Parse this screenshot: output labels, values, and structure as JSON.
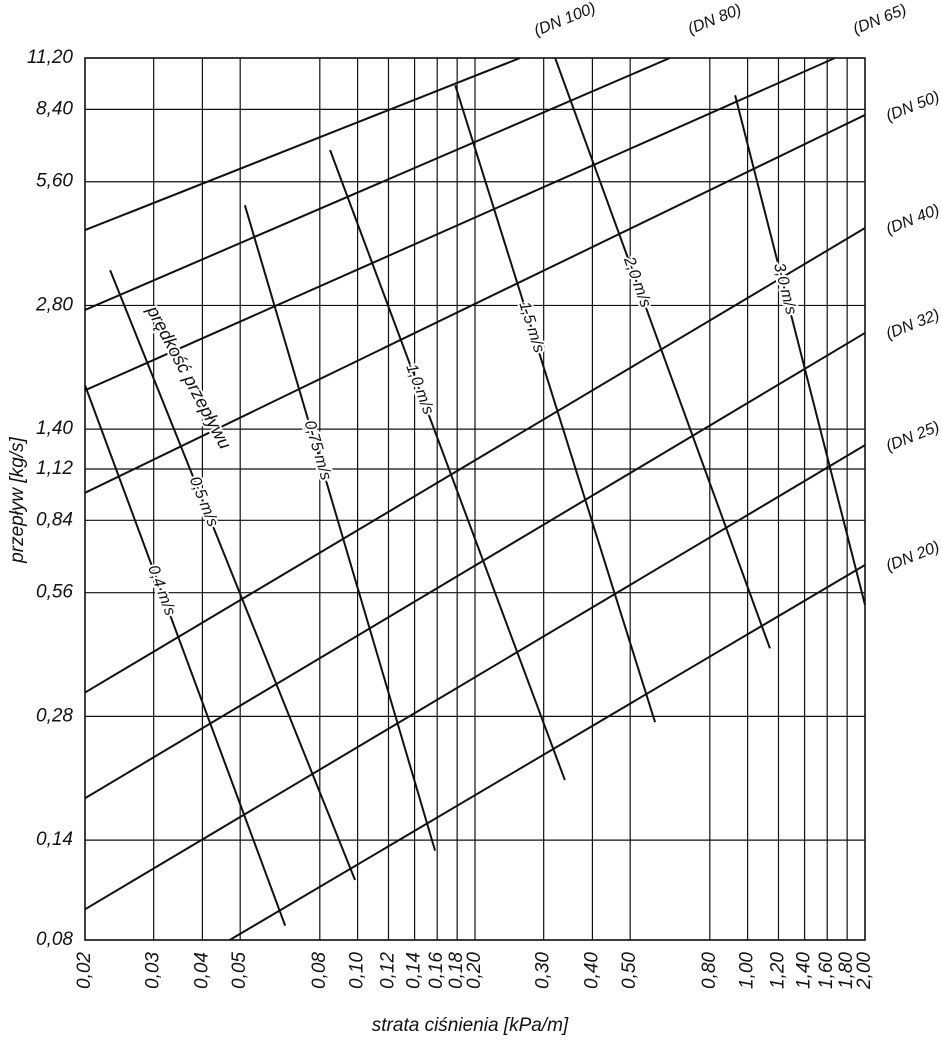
{
  "chart_data": {
    "type": "line",
    "xlabel": "strata ciśnienia [kPa/m]",
    "ylabel": "przepływ [kg/s]",
    "annotation": "prędkość przepływu",
    "xscale": "log",
    "yscale": "log",
    "grid": true,
    "color": "#111111",
    "xlim": [
      0.02,
      2.0
    ],
    "ylim": [
      0.08,
      11.2
    ],
    "xticks": [
      {
        "value": 0.02,
        "label": "0,02"
      },
      {
        "value": 0.03,
        "label": "0,03"
      },
      {
        "value": 0.04,
        "label": "0,04"
      },
      {
        "value": 0.05,
        "label": "0,05"
      },
      {
        "value": 0.08,
        "label": "0,08"
      },
      {
        "value": 0.1,
        "label": "0,10"
      },
      {
        "value": 0.12,
        "label": "0,12"
      },
      {
        "value": 0.14,
        "label": "0,14"
      },
      {
        "value": 0.16,
        "label": "0,16"
      },
      {
        "value": 0.18,
        "label": "0,18"
      },
      {
        "value": 0.2,
        "label": "0,20"
      },
      {
        "value": 0.3,
        "label": "0,30"
      },
      {
        "value": 0.4,
        "label": "0,40"
      },
      {
        "value": 0.5,
        "label": "0,50"
      },
      {
        "value": 0.8,
        "label": "0,80"
      },
      {
        "value": 1.0,
        "label": "1,00"
      },
      {
        "value": 1.2,
        "label": "1,20"
      },
      {
        "value": 1.4,
        "label": "1,40"
      },
      {
        "value": 1.6,
        "label": "1,60"
      },
      {
        "value": 1.8,
        "label": "1,80"
      },
      {
        "value": 2.0,
        "label": "2,00"
      }
    ],
    "yticks": [
      {
        "value": 0.08,
        "label": "0,08"
      },
      {
        "value": 0.14,
        "label": "0,14"
      },
      {
        "value": 0.28,
        "label": "0,28"
      },
      {
        "value": 0.56,
        "label": "0,56"
      },
      {
        "value": 0.84,
        "label": "0,84"
      },
      {
        "value": 1.12,
        "label": "1,12"
      },
      {
        "value": 1.4,
        "label": "1,40"
      },
      {
        "value": 2.8,
        "label": "2,80"
      },
      {
        "value": 5.6,
        "label": "5,60"
      },
      {
        "value": 8.4,
        "label": "8,40"
      },
      {
        "value": 11.2,
        "label": "11,20"
      }
    ],
    "series": [
      {
        "name": "(DN 100)",
        "x": [
          0.02,
          0.261
        ],
        "values": [
          4.27,
          11.2
        ]
      },
      {
        "name": "(DN 80)",
        "x": [
          0.02,
          0.632
        ],
        "values": [
          2.73,
          11.2
        ]
      },
      {
        "name": "(DN 65)",
        "x": [
          0.02,
          1.675
        ],
        "values": [
          1.74,
          11.2
        ]
      },
      {
        "name": "(DN 50)",
        "x": [
          0.02,
          2.0
        ],
        "values": [
          0.98,
          8.14
        ]
      },
      {
        "name": "(DN 40)",
        "x": [
          0.02,
          2.0
        ],
        "values": [
          0.32,
          4.32
        ]
      },
      {
        "name": "(DN 32)",
        "x": [
          0.02,
          2.0
        ],
        "values": [
          0.177,
          2.4
        ]
      },
      {
        "name": "(DN 25)",
        "x": [
          0.02,
          2.0
        ],
        "values": [
          0.095,
          1.28
        ]
      },
      {
        "name": "(DN 20)",
        "x": [
          0.047,
          2.0
        ],
        "values": [
          0.08,
          0.654
        ]
      },
      {
        "name": "0,4 m/s",
        "x": [
          0.02,
          0.0652
        ],
        "values": [
          1.79,
          0.0867
        ]
      },
      {
        "name": "0,5 m/s",
        "x": [
          0.0232,
          0.0985
        ],
        "values": [
          3.41,
          0.112
        ]
      },
      {
        "name": "0,75 m/s",
        "x": [
          0.0514,
          0.158
        ],
        "values": [
          4.91,
          0.132
        ]
      },
      {
        "name": "1,0 m/s",
        "x": [
          0.085,
          0.34
        ],
        "values": [
          6.69,
          0.196
        ]
      },
      {
        "name": "1,5 m/s",
        "x": [
          0.178,
          0.579
        ],
        "values": [
          9.61,
          0.271
        ]
      },
      {
        "name": "2,0 m/s",
        "x": [
          0.321,
          1.141
        ],
        "values": [
          11.2,
          0.41
        ]
      },
      {
        "name": "3,0 m/s",
        "x": [
          0.929,
          2.0
        ],
        "values": [
          9.09,
          0.523
        ]
      }
    ]
  }
}
